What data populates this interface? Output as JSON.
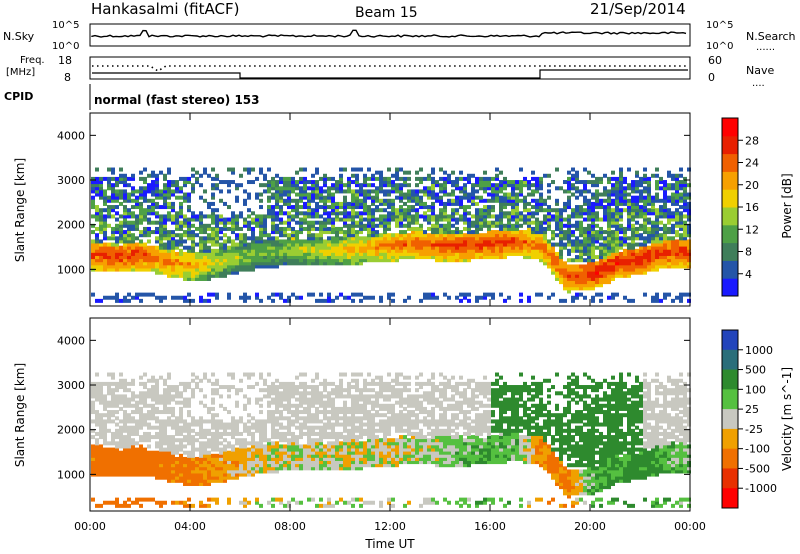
{
  "header": {
    "station": "Hankasalmi (fitACF)",
    "beam": "Beam 15",
    "date": "21/Sep/2014"
  },
  "noise_panel": {
    "left_label": "N.Sky",
    "right_label": "N.Search",
    "left_ticks": [
      "10^5",
      "10^0"
    ],
    "right_ticks": [
      "10^5",
      "10^0"
    ],
    "line_style_hint": "......"
  },
  "freq_panel": {
    "left_label_line1": "Freq.",
    "left_label_line2": "[MHz]",
    "left_ticks": [
      "18",
      "8"
    ],
    "right_label": "Nave",
    "right_ticks": [
      "60",
      "0"
    ],
    "line_style_hint": "...."
  },
  "cpid_panel": {
    "label": "CPID",
    "text": "normal (fast stereo) 153"
  },
  "time_axis": {
    "label": "Time UT",
    "ticks": [
      "00:00",
      "04:00",
      "08:00",
      "12:00",
      "16:00",
      "20:00",
      "00:00"
    ]
  },
  "range_axis": {
    "label": "Slant Range [km]",
    "ticks": [
      "1000",
      "2000",
      "3000",
      "4000"
    ]
  },
  "power_colorbar": {
    "label": "Power [dB]",
    "ticks": [
      "4",
      "8",
      "12",
      "16",
      "20",
      "24",
      "28"
    ],
    "colors": [
      "#1a1aff",
      "#2455a8",
      "#3f7e5a",
      "#4ea046",
      "#9acd32",
      "#f0d000",
      "#f7a000",
      "#f06000",
      "#e82000",
      "#ff0000"
    ]
  },
  "velocity_colorbar": {
    "label": "Velocity [m s^-1]",
    "ticks": [
      "1000",
      "500",
      "100",
      "25",
      "-25",
      "-100",
      "-500",
      "-1000"
    ],
    "colors": [
      "#2244bb",
      "#2a6e7a",
      "#2e8a2e",
      "#55c040",
      "#c8c8c0",
      "#f0a000",
      "#f07000",
      "#e83000",
      "#ff0000"
    ]
  },
  "chart_data": [
    {
      "type": "heatmap",
      "title": "Power [dB]",
      "xlabel": "Time UT",
      "ylabel": "Slant Range [km]",
      "xlim": [
        "00:00",
        "24:00"
      ],
      "ylim": [
        180,
        4500
      ],
      "zlim": [
        0,
        30
      ],
      "colorbar_ticks": [
        4,
        8,
        12,
        16,
        20,
        24,
        28
      ],
      "description_of_values": "approximate echo band centers (range km) and peak power (dB) per hour",
      "x": [
        "00:00",
        "01:00",
        "02:00",
        "03:00",
        "04:00",
        "05:00",
        "06:00",
        "07:00",
        "08:00",
        "09:00",
        "10:00",
        "11:00",
        "12:00",
        "13:00",
        "14:00",
        "15:00",
        "16:00",
        "17:00",
        "18:00",
        "19:00",
        "20:00",
        "21:00",
        "22:00",
        "23:00"
      ],
      "band_range_km": [
        1300,
        1250,
        1300,
        1150,
        1050,
        1100,
        1250,
        1350,
        1400,
        1400,
        1400,
        1450,
        1500,
        1550,
        1500,
        1500,
        1550,
        1600,
        1500,
        800,
        850,
        1100,
        1200,
        1350
      ],
      "band_peak_db": [
        26,
        27,
        26,
        24,
        22,
        18,
        16,
        15,
        16,
        18,
        20,
        22,
        24,
        25,
        26,
        27,
        27,
        26,
        24,
        26,
        28,
        28,
        28,
        27
      ]
    },
    {
      "type": "heatmap",
      "title": "Velocity [m s^-1]",
      "xlabel": "Time UT",
      "ylabel": "Slant Range [km]",
      "xlim": [
        "00:00",
        "24:00"
      ],
      "ylim": [
        180,
        4500
      ],
      "zlim": [
        -1000,
        1000
      ],
      "colorbar_ticks": [
        1000,
        500,
        100,
        25,
        -25,
        -100,
        -500,
        -1000
      ],
      "description_of_values": "approximate dominant velocity (m/s) of echoes per hour",
      "x": [
        "00:00",
        "01:00",
        "02:00",
        "03:00",
        "04:00",
        "05:00",
        "06:00",
        "07:00",
        "08:00",
        "09:00",
        "10:00",
        "11:00",
        "12:00",
        "13:00",
        "14:00",
        "15:00",
        "16:00",
        "17:00",
        "18:00",
        "19:00",
        "20:00",
        "21:00",
        "22:00",
        "23:00"
      ],
      "dominant_velocity": [
        -150,
        -200,
        -180,
        -150,
        -120,
        -80,
        -40,
        0,
        0,
        0,
        0,
        0,
        0,
        10,
        30,
        60,
        80,
        60,
        -100,
        -120,
        80,
        120,
        150,
        60
      ]
    }
  ]
}
